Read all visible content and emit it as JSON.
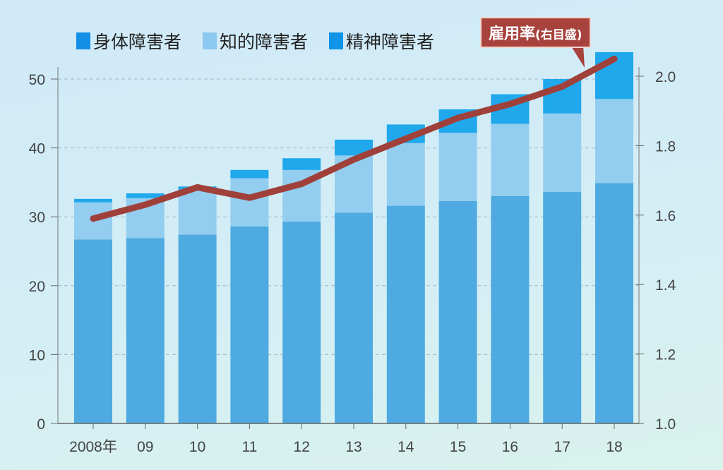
{
  "chart_data": {
    "type": "bar",
    "stacked": true,
    "categories": [
      "2008年",
      "09",
      "10",
      "11",
      "12",
      "13",
      "14",
      "15",
      "16",
      "17",
      "18"
    ],
    "series": [
      {
        "name": "身体障害者",
        "color": "#4eaae0",
        "legend_color": "#138fe6",
        "values": [
          26.7,
          26.9,
          27.4,
          28.6,
          29.3,
          30.6,
          31.6,
          32.3,
          33.0,
          33.6,
          34.9
        ]
      },
      {
        "name": "知的障害者",
        "color": "#93cdef",
        "legend_color": "#8cc8f0",
        "values": [
          5.4,
          5.8,
          6.4,
          7.0,
          7.5,
          8.3,
          9.1,
          9.9,
          10.5,
          11.4,
          12.2
        ]
      },
      {
        "name": "精神障害者",
        "color": "#1fa8ec",
        "legend_color": "#0f94e8",
        "values": [
          0.5,
          0.7,
          0.6,
          1.2,
          1.7,
          2.3,
          2.7,
          3.4,
          4.3,
          5.0,
          6.8
        ]
      }
    ],
    "line": {
      "name": "雇用率",
      "note": "(右目盛)",
      "color": "#a0403a",
      "values": [
        1.59,
        1.63,
        1.68,
        1.65,
        1.69,
        1.76,
        1.82,
        1.88,
        1.92,
        1.97,
        2.05
      ]
    },
    "y_left": {
      "ylim": [
        0,
        55
      ],
      "ticks": [
        "0",
        "10",
        "20",
        "30",
        "40",
        "50"
      ]
    },
    "y_right": {
      "ylim": [
        1.0,
        2.1
      ],
      "ticks": [
        "1.0",
        "1.2",
        "1.4",
        "1.6",
        "1.8",
        "2.0"
      ]
    },
    "grid": "horizontal dashed",
    "legend_placement": "top-left"
  }
}
